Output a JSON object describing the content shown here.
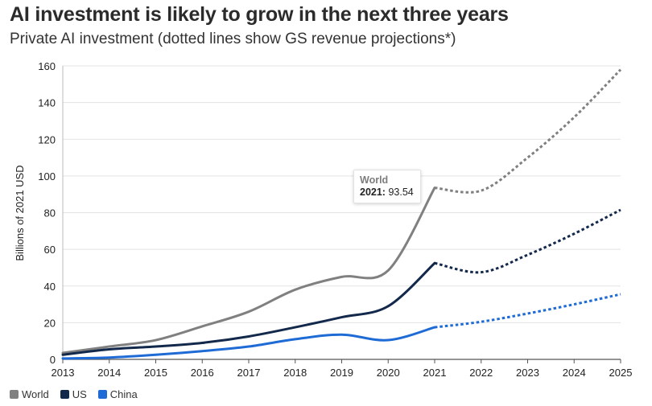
{
  "title": "AI investment is likely to grow in the next three years",
  "subtitle": "Private AI investment (dotted lines show GS revenue projections*)",
  "tooltip": {
    "series": "World",
    "year": "2021:",
    "value": "93.54"
  },
  "chart_data": {
    "type": "line",
    "ylabel": "Billions of 2021 USD",
    "ylim": [
      0,
      160
    ],
    "yticks": [
      0,
      20,
      40,
      60,
      80,
      100,
      120,
      140,
      160
    ],
    "x": [
      "2013",
      "2014",
      "2015",
      "2016",
      "2017",
      "2018",
      "2019",
      "2020",
      "2021",
      "2022",
      "2023",
      "2024",
      "2025"
    ],
    "projection_start": "2022",
    "grid": true,
    "legend": "bottom-left",
    "series": [
      {
        "name": "World",
        "color": "#808080",
        "values": [
          3.5,
          7,
          10.5,
          18,
          26,
          38,
          45,
          48.5,
          93.54,
          92,
          110,
          132,
          158
        ]
      },
      {
        "name": "US",
        "color": "#13294b",
        "values": [
          2.5,
          5.5,
          7,
          9,
          12.5,
          17.5,
          23,
          29,
          52.5,
          47.5,
          57,
          68.5,
          81.5
        ]
      },
      {
        "name": "China",
        "color": "#1f6bd6",
        "values": [
          0.5,
          1,
          2.5,
          4.5,
          7,
          11,
          13.5,
          10.5,
          17.5,
          20.5,
          25,
          30,
          35.5
        ]
      }
    ]
  }
}
